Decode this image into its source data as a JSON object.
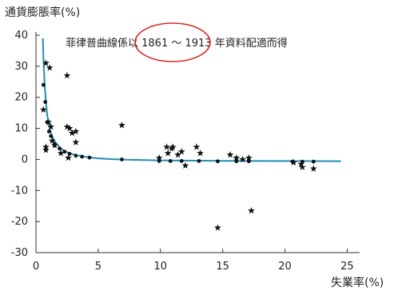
{
  "colors": {
    "curve": "#1f8fb3",
    "axis": "#333333",
    "star": "#111111",
    "dot": "#111111",
    "highlight": "#d42a2a"
  },
  "chart_data": {
    "type": "scatter",
    "title": "",
    "ylabel": "通貨膨脹率(%)",
    "xlabel": "失業率(%)",
    "annotation": "菲律普曲線係以 1861 ～ 1913 年資料配適而得",
    "annotation_highlight": "1861 ～ 1913",
    "xlim": [
      0,
      26
    ],
    "ylim": [
      -30,
      40
    ],
    "x_ticks": [
      0,
      5,
      10,
      15,
      20,
      25
    ],
    "y_ticks": [
      40,
      30,
      20,
      10,
      0,
      -10,
      -20,
      -30
    ],
    "grid": false,
    "series": [
      {
        "marker": "star",
        "points": [
          [
            0.6,
            16
          ],
          [
            0.8,
            31
          ],
          [
            1.1,
            29.5
          ],
          [
            0.8,
            4
          ],
          [
            0.8,
            3
          ],
          [
            1.0,
            12
          ],
          [
            1.2,
            10.5
          ],
          [
            1.3,
            6
          ],
          [
            1.5,
            4.5
          ],
          [
            2.0,
            2
          ],
          [
            2.5,
            27
          ],
          [
            2.5,
            10.5
          ],
          [
            2.7,
            10
          ],
          [
            2.9,
            8.5
          ],
          [
            3.2,
            9
          ],
          [
            3.2,
            5.5
          ],
          [
            2.6,
            0.5
          ],
          [
            6.9,
            11
          ],
          [
            9.9,
            0.5
          ],
          [
            10.5,
            4
          ],
          [
            10.6,
            2
          ],
          [
            10.9,
            3.5
          ],
          [
            11.0,
            4
          ],
          [
            11.4,
            1.5
          ],
          [
            11.7,
            2.5
          ],
          [
            12.0,
            -2
          ],
          [
            12.9,
            4
          ],
          [
            13.2,
            2
          ],
          [
            14.6,
            -22
          ],
          [
            15.6,
            1.5
          ],
          [
            16.1,
            0.5
          ],
          [
            16.6,
            0
          ],
          [
            17.1,
            0.5
          ],
          [
            17.3,
            -16.5
          ],
          [
            20.7,
            -1
          ],
          [
            21.3,
            -1.5
          ],
          [
            21.4,
            -2.5
          ],
          [
            22.3,
            -3
          ]
        ]
      },
      {
        "marker": "dot",
        "points": [
          [
            0.6,
            24
          ],
          [
            0.75,
            18.5
          ],
          [
            0.9,
            12
          ],
          [
            1.05,
            9
          ],
          [
            1.2,
            7.5
          ],
          [
            1.5,
            5
          ],
          [
            1.9,
            3.5
          ],
          [
            2.3,
            2.5
          ],
          [
            2.7,
            1.8
          ],
          [
            3.2,
            1.2
          ],
          [
            3.7,
            0.9
          ],
          [
            4.3,
            0.6
          ],
          [
            6.9,
            0
          ],
          [
            9.9,
            -0.5
          ],
          [
            10.8,
            -0.5
          ],
          [
            11.7,
            -0.5
          ],
          [
            13.1,
            -0.5
          ],
          [
            14.6,
            -0.6
          ],
          [
            16.1,
            -0.6
          ],
          [
            17.1,
            -0.6
          ],
          [
            20.6,
            -0.7
          ],
          [
            21.4,
            -0.7
          ],
          [
            22.3,
            -0.7
          ]
        ]
      }
    ],
    "curve": {
      "name": "",
      "points": [
        [
          0.55,
          39
        ],
        [
          0.6,
          33
        ],
        [
          0.7,
          24
        ],
        [
          0.8,
          18.5
        ],
        [
          0.9,
          14.5
        ],
        [
          1.0,
          11.8
        ],
        [
          1.2,
          8.5
        ],
        [
          1.5,
          5.7
        ],
        [
          2.0,
          3.5
        ],
        [
          2.5,
          2.3
        ],
        [
          3.0,
          1.6
        ],
        [
          4.0,
          0.8
        ],
        [
          5.0,
          0.35
        ],
        [
          6.0,
          0.1
        ],
        [
          7.0,
          -0.05
        ],
        [
          8.0,
          -0.15
        ],
        [
          10.0,
          -0.3
        ],
        [
          12.0,
          -0.38
        ],
        [
          15.0,
          -0.45
        ],
        [
          18.0,
          -0.5
        ],
        [
          21.0,
          -0.53
        ],
        [
          24.5,
          -0.55
        ]
      ]
    }
  }
}
